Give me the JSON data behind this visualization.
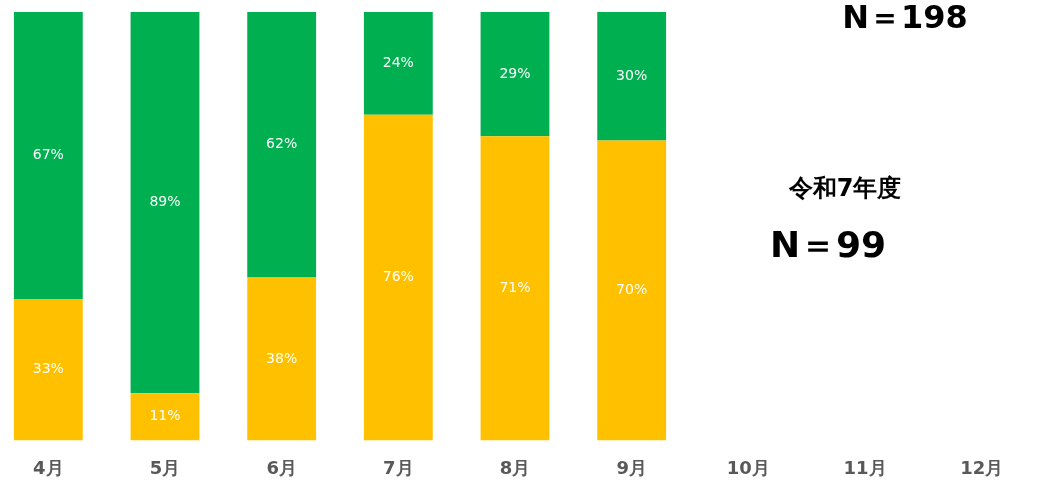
{
  "chart_data": {
    "type": "bar",
    "stacked": true,
    "categories": [
      "4月",
      "5月",
      "6月",
      "7月",
      "8月",
      "9月",
      "10月",
      "11月",
      "12月"
    ],
    "series": [
      {
        "color": "#ffc000",
        "values": [
          33,
          11,
          38,
          76,
          71,
          70,
          null,
          null,
          null
        ],
        "value_labels": [
          "33%",
          "11%",
          "38%",
          "76%",
          "71%",
          "70%",
          null,
          null,
          null
        ]
      },
      {
        "color": "#00b050",
        "values": [
          67,
          89,
          62,
          24,
          29,
          30,
          null,
          null,
          null
        ],
        "value_labels": [
          "67%",
          "89%",
          "62%",
          "24%",
          "29%",
          "30%",
          null,
          null,
          null
        ]
      }
    ],
    "legend": false,
    "grid": false,
    "annotations": [
      "N＝198",
      "令和7年度",
      "N＝99"
    ]
  }
}
